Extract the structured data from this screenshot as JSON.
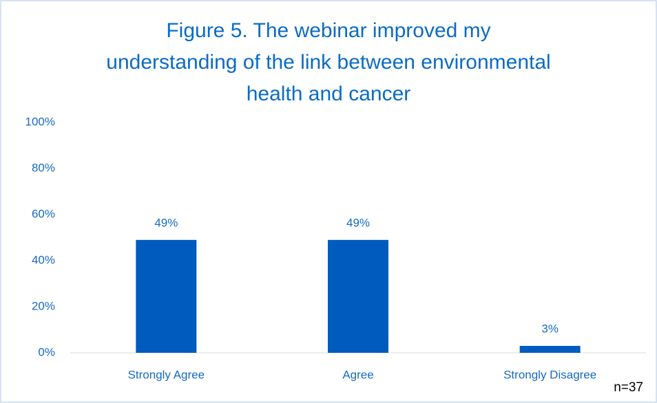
{
  "chart_data": {
    "type": "bar",
    "title": "Figure 5. The webinar improved my\nunderstanding of the link between environmental\nhealth and cancer",
    "categories": [
      "Strongly Agree",
      "Agree",
      "Strongly Disagree"
    ],
    "values": [
      49,
      49,
      3
    ],
    "value_labels": [
      "49%",
      "49%",
      "3%"
    ],
    "color": "#005bbf",
    "ylim": [
      0,
      100
    ],
    "yticks": [
      {
        "value": 0,
        "label": "0%"
      },
      {
        "value": 20,
        "label": "20%"
      },
      {
        "value": 40,
        "label": "40%"
      },
      {
        "value": 60,
        "label": "60%"
      },
      {
        "value": 80,
        "label": "80%"
      },
      {
        "value": 100,
        "label": "100%"
      }
    ],
    "grid": false,
    "annotation": "n=37"
  }
}
